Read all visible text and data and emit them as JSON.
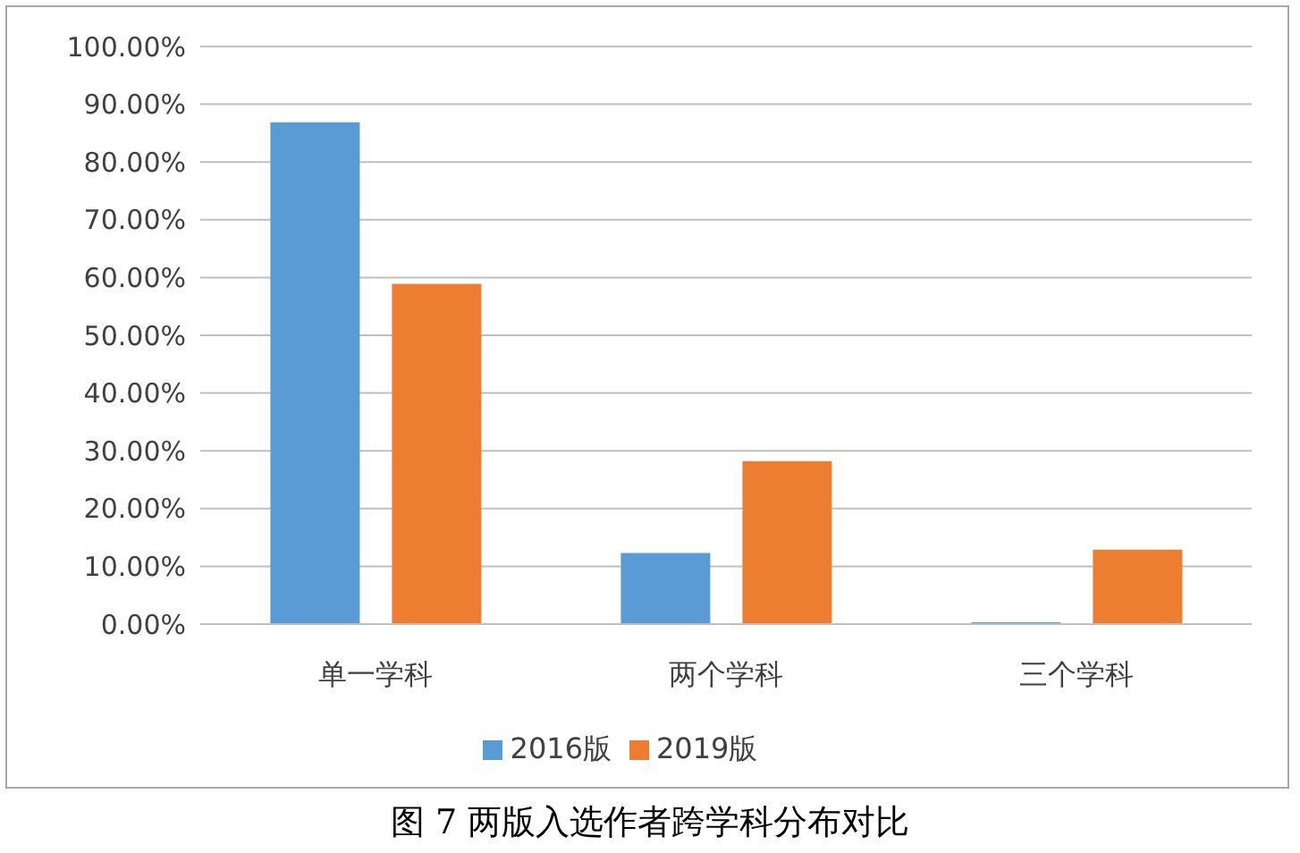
{
  "chart_data": {
    "type": "bar",
    "categories": [
      "单一学科",
      "两个学科",
      "三个学科"
    ],
    "series": [
      {
        "name": "2016版",
        "color": "#5b9bd5",
        "values": [
          86.9,
          12.3,
          0.3
        ]
      },
      {
        "name": "2019版",
        "color": "#ed7d31",
        "values": [
          58.9,
          28.2,
          12.9
        ]
      }
    ],
    "ylim": [
      0,
      100
    ],
    "yticks": [
      {
        "value": 0,
        "label": "0.00%"
      },
      {
        "value": 10,
        "label": "10.00%"
      },
      {
        "value": 20,
        "label": "20.00%"
      },
      {
        "value": 30,
        "label": "30.00%"
      },
      {
        "value": 40,
        "label": "40.00%"
      },
      {
        "value": 50,
        "label": "50.00%"
      },
      {
        "value": 60,
        "label": "60.00%"
      },
      {
        "value": 70,
        "label": "70.00%"
      },
      {
        "value": 80,
        "label": "80.00%"
      },
      {
        "value": 90,
        "label": "90.00%"
      },
      {
        "value": 100,
        "label": "100.00%"
      }
    ],
    "grid": "y",
    "legend": "bottom",
    "annotations": [
      "图 7 两版入选作者跨学科分布对比"
    ]
  }
}
